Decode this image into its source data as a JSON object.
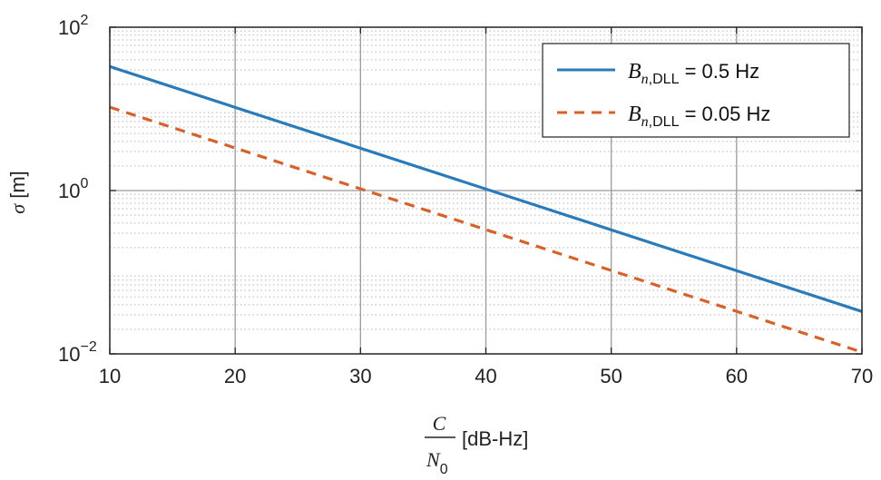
{
  "chart_data": {
    "type": "line",
    "yscale": "log",
    "xlim": [
      10,
      70
    ],
    "ylim": [
      0.01,
      100
    ],
    "x_ticks": [
      10,
      20,
      30,
      40,
      50,
      60,
      70
    ],
    "x_tick_labels": [
      "10",
      "20",
      "30",
      "40",
      "50",
      "60",
      "70"
    ],
    "y_ticks": [
      0.01,
      1,
      100
    ],
    "y_tick_labels": [
      {
        "base": "10",
        "exp": "−2"
      },
      {
        "base": "10",
        "exp": "0"
      },
      {
        "base": "10",
        "exp": "2"
      }
    ],
    "xlabel": {
      "numerator": "C",
      "denominator": "N",
      "denominator_sub": "0",
      "unit": "[dB-Hz]"
    },
    "ylabel": {
      "symbol": "σ",
      "unit": "[m]"
    },
    "grid": true,
    "minor_grid": true,
    "legend_position": "top-right",
    "series": [
      {
        "name": {
          "prefix": "B",
          "sub_italic": "n",
          "sub_plain": ",DLL",
          "suffix": " = 0.5 Hz"
        },
        "color": "#2b7bba",
        "style": "solid",
        "x": [
          10,
          70
        ],
        "y": [
          33,
          0.033
        ]
      },
      {
        "name": {
          "prefix": "B",
          "sub_italic": "n",
          "sub_plain": ",DLL",
          "suffix": " = 0.05 Hz"
        },
        "color": "#d4622a",
        "style": "dashed",
        "x": [
          10,
          70
        ],
        "y": [
          10.5,
          0.0105
        ]
      }
    ]
  }
}
